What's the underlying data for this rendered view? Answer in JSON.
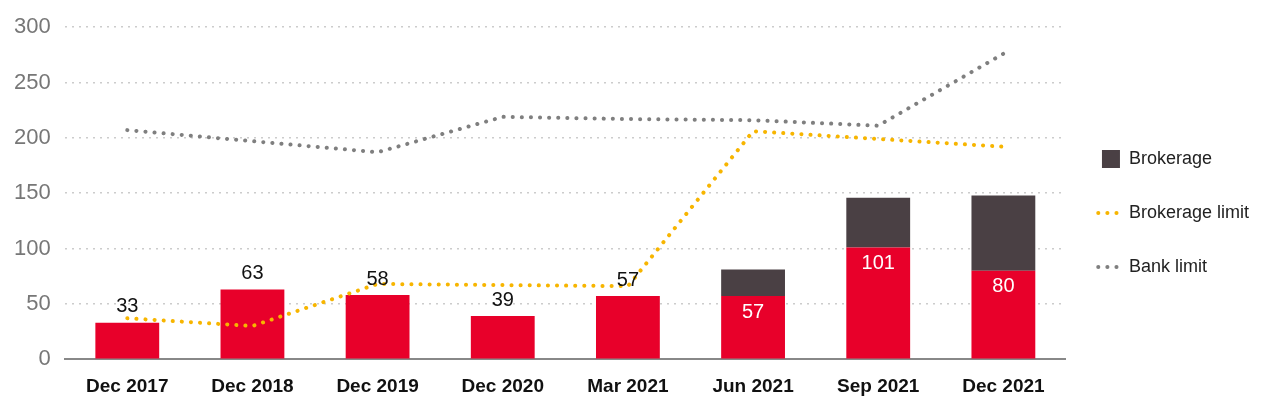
{
  "chart_data": {
    "type": "bar",
    "stacked": true,
    "categories": [
      "Dec 2017",
      "Dec 2018",
      "Dec 2019",
      "Dec 2020",
      "Mar 2021",
      "Jun 2021",
      "Sep 2021",
      "Dec 2021"
    ],
    "series": [
      {
        "color": "#e8002a",
        "values": [
          33,
          63,
          58,
          39,
          57,
          57,
          101,
          80
        ],
        "value_labels": [
          "33",
          "63",
          "58",
          "39",
          "57",
          "57",
          "101",
          "80"
        ]
      },
      {
        "name": "Brokerage",
        "color": "#4a4044",
        "values": [
          null,
          null,
          null,
          null,
          null,
          24,
          45,
          68
        ]
      },
      {
        "name": "Brokerage limit",
        "type": "line",
        "line_style": "dotted",
        "color": "#f7b500",
        "values": [
          37,
          30,
          68,
          67,
          66,
          206,
          199,
          192
        ]
      },
      {
        "name": "Bank limit",
        "type": "line",
        "line_style": "dotted",
        "color": "#7f7f7f",
        "values": [
          207,
          197,
          187,
          219,
          217,
          216,
          211,
          276
        ]
      }
    ],
    "ylim": [
      0,
      300
    ],
    "yticks": [
      0,
      50,
      100,
      150,
      200,
      250,
      300
    ],
    "grid": "y",
    "legend": "right",
    "marker": "none"
  }
}
